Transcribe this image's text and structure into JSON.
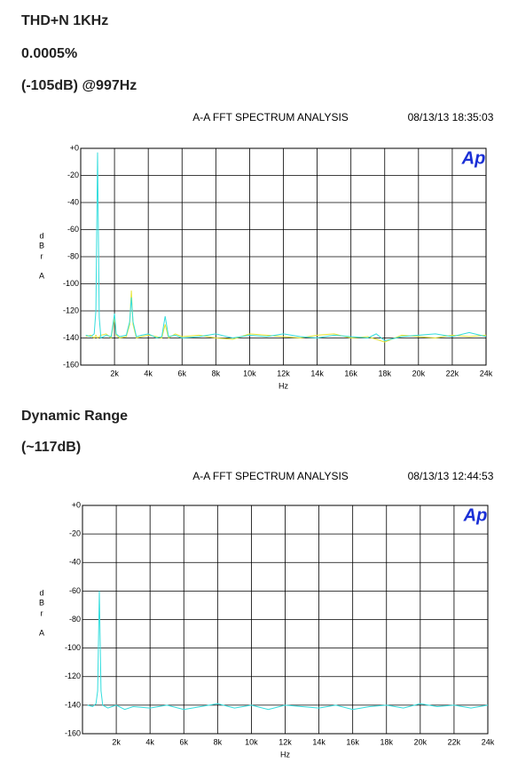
{
  "headings": [
    "THD+N 1KHz",
    "0.0005%",
    "(-105dB) @997Hz",
    "Dynamic Range",
    "(~117dB)"
  ],
  "chart_data": [
    {
      "type": "line",
      "title": "A-A FFT SPECTRUM ANALYSIS",
      "timestamp": "08/13/13 18:35:03",
      "logo": "Ap",
      "xlabel": "Hz",
      "ylabel": [
        "d",
        "B",
        "r",
        "A"
      ],
      "x": [
        300,
        600,
        800,
        900,
        1000,
        1100,
        1200,
        1500,
        1800,
        2000,
        2100,
        2300,
        2700,
        2900,
        3000,
        3100,
        3300,
        3600,
        4000,
        4500,
        4800,
        5000,
        5200,
        5600,
        6000,
        7000,
        8000,
        9000,
        10000,
        11000,
        12000,
        13000,
        14000,
        15000,
        16000,
        17000,
        17500,
        18000,
        19000,
        20000,
        21000,
        22000,
        23000,
        24000
      ],
      "series": [
        {
          "color": "#e6e633",
          "values": [
            -139,
            -138,
            -140,
            -138,
            -140,
            -139,
            -138,
            -137,
            -140,
            -125,
            -138,
            -140,
            -139,
            -130,
            -105,
            -130,
            -140,
            -139,
            -138,
            -139,
            -140,
            -130,
            -140,
            -137,
            -139,
            -138,
            -140,
            -141,
            -137,
            -138,
            -139,
            -140,
            -138,
            -137,
            -140,
            -139,
            -141,
            -143,
            -138,
            -139,
            -140,
            -138,
            -139,
            -138
          ]
        },
        {
          "color": "#33dddd",
          "values": [
            -138,
            -139,
            -137,
            -120,
            -3,
            -125,
            -140,
            -138,
            -139,
            -122,
            -137,
            -139,
            -138,
            -128,
            -110,
            -128,
            -139,
            -138,
            -137,
            -140,
            -139,
            -124,
            -139,
            -138,
            -140,
            -139,
            -137,
            -140,
            -138,
            -139,
            -137,
            -139,
            -140,
            -138,
            -139,
            -140,
            -137,
            -142,
            -139,
            -138,
            -137,
            -139,
            -136,
            -139
          ]
        }
      ],
      "xlim": [
        0,
        24000
      ],
      "ylim": [
        -160,
        0
      ],
      "xticks": [
        {
          "value": 2000,
          "label": "2k"
        },
        {
          "value": 4000,
          "label": "4k"
        },
        {
          "value": 6000,
          "label": "6k"
        },
        {
          "value": 8000,
          "label": "8k"
        },
        {
          "value": 10000,
          "label": "10k"
        },
        {
          "value": 12000,
          "label": "12k"
        },
        {
          "value": 14000,
          "label": "14k"
        },
        {
          "value": 16000,
          "label": "16k"
        },
        {
          "value": 18000,
          "label": "18k"
        },
        {
          "value": 20000,
          "label": "20k"
        },
        {
          "value": 22000,
          "label": "22k"
        },
        {
          "value": 24000,
          "label": "24k"
        }
      ],
      "yticks": [
        {
          "value": 0,
          "label": "+0"
        },
        -20,
        -40,
        -60,
        -80,
        -100,
        -120,
        -140,
        -160
      ],
      "grid": true
    },
    {
      "type": "line",
      "title": "A-A FFT SPECTRUM ANALYSIS",
      "timestamp": "08/13/13 12:44:53",
      "logo": "Ap",
      "xlabel": "Hz",
      "ylabel": [
        "d",
        "B",
        "r",
        "A"
      ],
      "x": [
        300,
        600,
        800,
        900,
        1000,
        1100,
        1200,
        1500,
        2000,
        2500,
        3000,
        4000,
        5000,
        6000,
        7000,
        8000,
        9000,
        10000,
        11000,
        12000,
        13000,
        14000,
        15000,
        16000,
        17000,
        18000,
        19000,
        20000,
        21000,
        22000,
        23000,
        24000
      ],
      "series": [
        {
          "color": "#33dddd",
          "values": [
            -140,
            -141,
            -139,
            -130,
            -60,
            -130,
            -140,
            -142,
            -140,
            -143,
            -141,
            -142,
            -140,
            -143,
            -141,
            -139,
            -142,
            -140,
            -143,
            -140,
            -141,
            -142,
            -140,
            -143,
            -141,
            -140,
            -142,
            -139,
            -141,
            -140,
            -142,
            -140
          ]
        }
      ],
      "xlim": [
        0,
        24000
      ],
      "ylim": [
        -160,
        0
      ],
      "xticks": [
        {
          "value": 2000,
          "label": "2k"
        },
        {
          "value": 4000,
          "label": "4k"
        },
        {
          "value": 6000,
          "label": "6k"
        },
        {
          "value": 8000,
          "label": "8k"
        },
        {
          "value": 10000,
          "label": "10k"
        },
        {
          "value": 12000,
          "label": "12k"
        },
        {
          "value": 14000,
          "label": "14k"
        },
        {
          "value": 16000,
          "label": "16k"
        },
        {
          "value": 18000,
          "label": "18k"
        },
        {
          "value": 20000,
          "label": "20k"
        },
        {
          "value": 22000,
          "label": "22k"
        },
        {
          "value": 24000,
          "label": "24k"
        }
      ],
      "yticks": [
        {
          "value": 0,
          "label": "+0"
        },
        -20,
        -40,
        -60,
        -80,
        -100,
        -120,
        -140,
        -160
      ],
      "grid": true
    }
  ]
}
